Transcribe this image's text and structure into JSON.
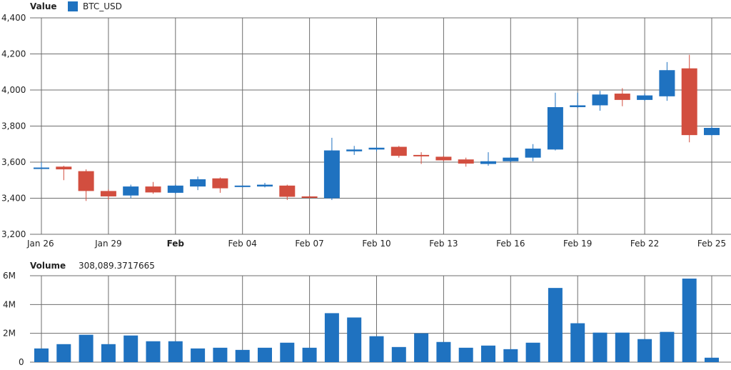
{
  "colors": {
    "up": "#1f72c0",
    "down": "#d24e3f",
    "volume": "#1f72c0",
    "grid": "#6e6e6e",
    "text": "#222222"
  },
  "price_panel": {
    "header_label": "Value",
    "legend_label": "BTC_USD"
  },
  "volume_panel": {
    "header_label": "Volume",
    "header_value": "308,089.3717665"
  },
  "chart_data": [
    {
      "type": "candlestick",
      "series": [
        {
          "name": "BTC_USD"
        }
      ],
      "ylim": [
        3200,
        4400
      ],
      "y_ticks": [
        "3,200",
        "3,400",
        "3,600",
        "3,800",
        "4,000",
        "4,200",
        "4,400"
      ],
      "x_ticks": [
        {
          "index": 0,
          "label": "Jan 26",
          "bold": false
        },
        {
          "index": 3,
          "label": "Jan 29",
          "bold": false
        },
        {
          "index": 6,
          "label": "Feb",
          "bold": true
        },
        {
          "index": 9,
          "label": "Feb 04",
          "bold": false
        },
        {
          "index": 12,
          "label": "Feb 07",
          "bold": false
        },
        {
          "index": 15,
          "label": "Feb 10",
          "bold": false
        },
        {
          "index": 18,
          "label": "Feb 13",
          "bold": false
        },
        {
          "index": 21,
          "label": "Feb 16",
          "bold": false
        },
        {
          "index": 24,
          "label": "Feb 19",
          "bold": false
        },
        {
          "index": 27,
          "label": "Feb 22",
          "bold": false
        },
        {
          "index": 30,
          "label": "Feb 25",
          "bold": false
        }
      ],
      "grid": true,
      "candles": [
        {
          "date": "Jan 26",
          "open": 3570,
          "high": 3600,
          "low": 3565,
          "close": 3570
        },
        {
          "date": "Jan 27",
          "open": 3575,
          "high": 3580,
          "low": 3500,
          "close": 3560
        },
        {
          "date": "Jan 28",
          "open": 3550,
          "high": 3560,
          "low": 3385,
          "close": 3440
        },
        {
          "date": "Jan 29",
          "open": 3440,
          "high": 3450,
          "low": 3390,
          "close": 3410
        },
        {
          "date": "Jan 30",
          "open": 3415,
          "high": 3475,
          "low": 3400,
          "close": 3465
        },
        {
          "date": "Jan 31",
          "open": 3465,
          "high": 3490,
          "low": 3425,
          "close": 3432
        },
        {
          "date": "Feb 01",
          "open": 3430,
          "high": 3475,
          "low": 3425,
          "close": 3470
        },
        {
          "date": "Feb 02",
          "open": 3465,
          "high": 3520,
          "low": 3445,
          "close": 3505
        },
        {
          "date": "Feb 03",
          "open": 3510,
          "high": 3515,
          "low": 3430,
          "close": 3455
        },
        {
          "date": "Feb 04",
          "open": 3465,
          "high": 3470,
          "low": 3460,
          "close": 3470
        },
        {
          "date": "Feb 05",
          "open": 3465,
          "high": 3485,
          "low": 3460,
          "close": 3475
        },
        {
          "date": "Feb 06",
          "open": 3470,
          "high": 3475,
          "low": 3390,
          "close": 3408
        },
        {
          "date": "Feb 07",
          "open": 3410,
          "high": 3415,
          "low": 3400,
          "close": 3402
        },
        {
          "date": "Feb 08",
          "open": 3400,
          "high": 3735,
          "low": 3390,
          "close": 3665
        },
        {
          "date": "Feb 09",
          "open": 3660,
          "high": 3690,
          "low": 3640,
          "close": 3670
        },
        {
          "date": "Feb 10",
          "open": 3670,
          "high": 3685,
          "low": 3660,
          "close": 3680
        },
        {
          "date": "Feb 11",
          "open": 3685,
          "high": 3690,
          "low": 3625,
          "close": 3635
        },
        {
          "date": "Feb 12",
          "open": 3640,
          "high": 3655,
          "low": 3590,
          "close": 3635
        },
        {
          "date": "Feb 13",
          "open": 3630,
          "high": 3635,
          "low": 3605,
          "close": 3610
        },
        {
          "date": "Feb 14",
          "open": 3615,
          "high": 3625,
          "low": 3575,
          "close": 3592
        },
        {
          "date": "Feb 15",
          "open": 3590,
          "high": 3655,
          "low": 3580,
          "close": 3605
        },
        {
          "date": "Feb 16",
          "open": 3605,
          "high": 3625,
          "low": 3600,
          "close": 3625
        },
        {
          "date": "Feb 17",
          "open": 3625,
          "high": 3700,
          "low": 3605,
          "close": 3675
        },
        {
          "date": "Feb 18",
          "open": 3670,
          "high": 3985,
          "low": 3665,
          "close": 3905
        },
        {
          "date": "Feb 19",
          "open": 3905,
          "high": 3985,
          "low": 3900,
          "close": 3915
        },
        {
          "date": "Feb 20",
          "open": 3915,
          "high": 3995,
          "low": 3885,
          "close": 3975
        },
        {
          "date": "Feb 21",
          "open": 3980,
          "high": 4010,
          "low": 3910,
          "close": 3945
        },
        {
          "date": "Feb 22",
          "open": 3945,
          "high": 3980,
          "low": 3940,
          "close": 3970
        },
        {
          "date": "Feb 23",
          "open": 3965,
          "high": 4155,
          "low": 3940,
          "close": 4110
        },
        {
          "date": "Feb 24",
          "open": 4120,
          "high": 4195,
          "low": 3710,
          "close": 3750
        },
        {
          "date": "Feb 25",
          "open": 3750,
          "high": 3800,
          "low": 3745,
          "close": 3790
        }
      ]
    },
    {
      "type": "bar",
      "series": [
        {
          "name": "Volume"
        }
      ],
      "ylim": [
        0,
        6000000
      ],
      "y_ticks": [
        "0",
        "2M",
        "4M",
        "6M"
      ],
      "grid": true,
      "values": [
        950000,
        1250000,
        1900000,
        1250000,
        1850000,
        1450000,
        1450000,
        950000,
        1000000,
        850000,
        1000000,
        1350000,
        1000000,
        3400000,
        3100000,
        1800000,
        1050000,
        2000000,
        1400000,
        1000000,
        1150000,
        900000,
        1350000,
        5150000,
        2700000,
        2050000,
        2050000,
        1600000,
        2100000,
        5800000,
        308089.3717665
      ]
    }
  ]
}
